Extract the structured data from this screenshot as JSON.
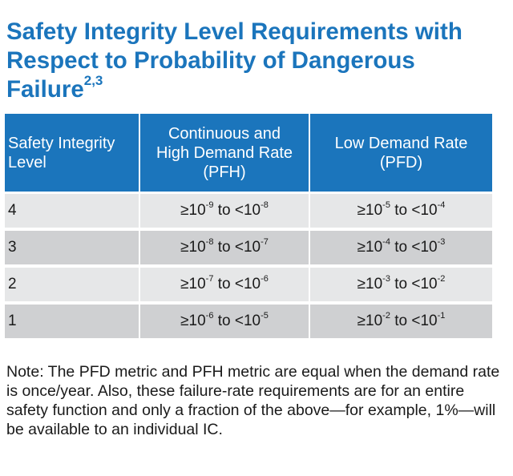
{
  "title": {
    "text": "Safety Integrity Level Requirements with Respect to Probability of Dangerous Failure",
    "footnote_refs": "2,3"
  },
  "table": {
    "headers": {
      "level": {
        "line1": "Safety Integrity",
        "line2": "Level"
      },
      "pfh": {
        "line1": "Continuous and",
        "line2": "High Demand Rate",
        "line3": "(PFH)"
      },
      "pfd": {
        "line1": "Low Demand Rate",
        "line2": "(PFD)"
      }
    },
    "rows": [
      {
        "level": "4",
        "pfh": {
          "ge": "≥10",
          "ge_exp": "-9",
          "mid": " to <10",
          "lt_exp": "-8"
        },
        "pfd": {
          "ge": "≥10",
          "ge_exp": "-5",
          "mid": " to <10",
          "lt_exp": "-4"
        }
      },
      {
        "level": "3",
        "pfh": {
          "ge": "≥10",
          "ge_exp": "-8",
          "mid": " to <10",
          "lt_exp": "-7"
        },
        "pfd": {
          "ge": "≥10",
          "ge_exp": "-4",
          "mid": " to <10",
          "lt_exp": "-3"
        }
      },
      {
        "level": "2",
        "pfh": {
          "ge": "≥10",
          "ge_exp": "-7",
          "mid": " to <10",
          "lt_exp": "-6"
        },
        "pfd": {
          "ge": "≥10",
          "ge_exp": "-3",
          "mid": " to <10",
          "lt_exp": "-2"
        }
      },
      {
        "level": "1",
        "pfh": {
          "ge": "≥10",
          "ge_exp": "-6",
          "mid": " to <10",
          "lt_exp": "-5"
        },
        "pfd": {
          "ge": "≥10",
          "ge_exp": "-2",
          "mid": " to <10",
          "lt_exp": "-1"
        }
      }
    ]
  },
  "note": "Note: The PFD metric and PFH metric are equal when the demand rate is once/year. Also, these failure-rate requirements are for an entire safety function and only a fraction of the above—for example, 1%—will be available to an individual IC.",
  "colors": {
    "accent_blue": "#1b75bc",
    "row_light": "#e6e7e8",
    "row_dark": "#cfd0d2"
  }
}
